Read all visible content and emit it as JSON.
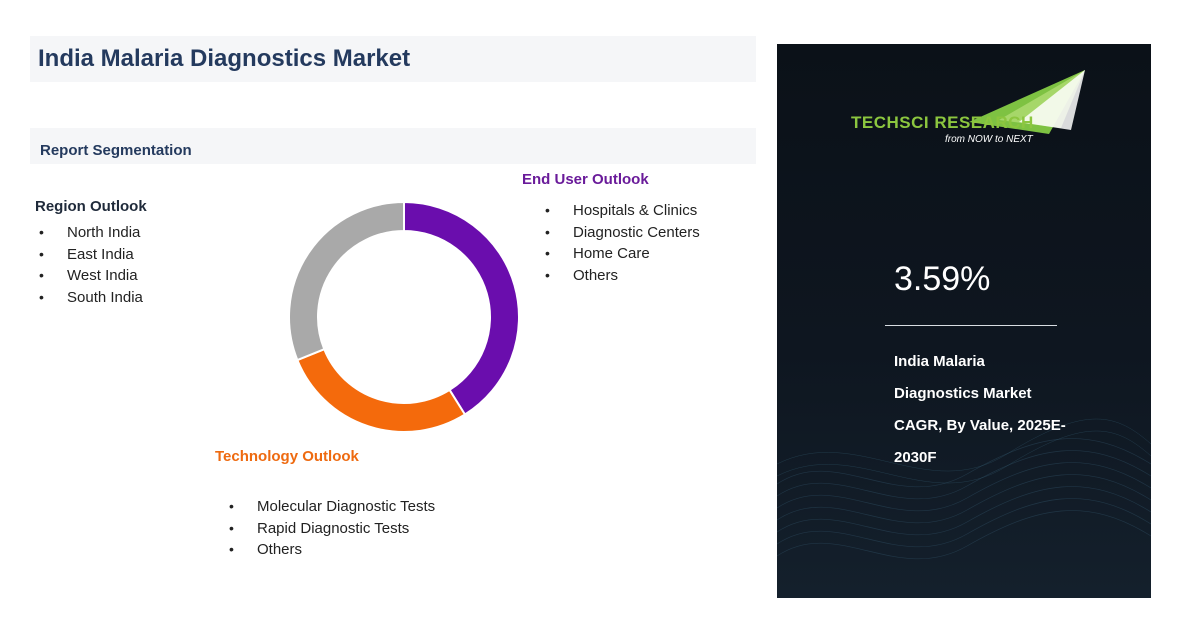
{
  "title": "India Malaria Diagnostics Market",
  "segmentation_label": "Report Segmentation",
  "region": {
    "heading": "Region Outlook",
    "items": [
      "North India",
      "East India",
      "West India",
      "South India"
    ]
  },
  "end_user": {
    "heading": "End User Outlook",
    "items": [
      "Hospitals & Clinics",
      "Diagnostic Centers",
      "Home Care",
      "Others"
    ]
  },
  "technology": {
    "heading": "Technology Outlook",
    "items": [
      "Molecular Diagnostic Tests",
      "Rapid Diagnostic Tests",
      "Others"
    ]
  },
  "donut_colors": {
    "end_user": "#6a0dad",
    "technology": "#f46a0c",
    "region": "#a9a9a9"
  },
  "panel": {
    "logo_main": "TECHSCI RESEARCH",
    "logo_tagline": "from NOW to NEXT",
    "cagr_value": "3.59%",
    "description_lines": [
      "India Malaria",
      "Diagnostics  Market",
      "CAGR, By Value, 2025E-",
      "2030F"
    ]
  }
}
